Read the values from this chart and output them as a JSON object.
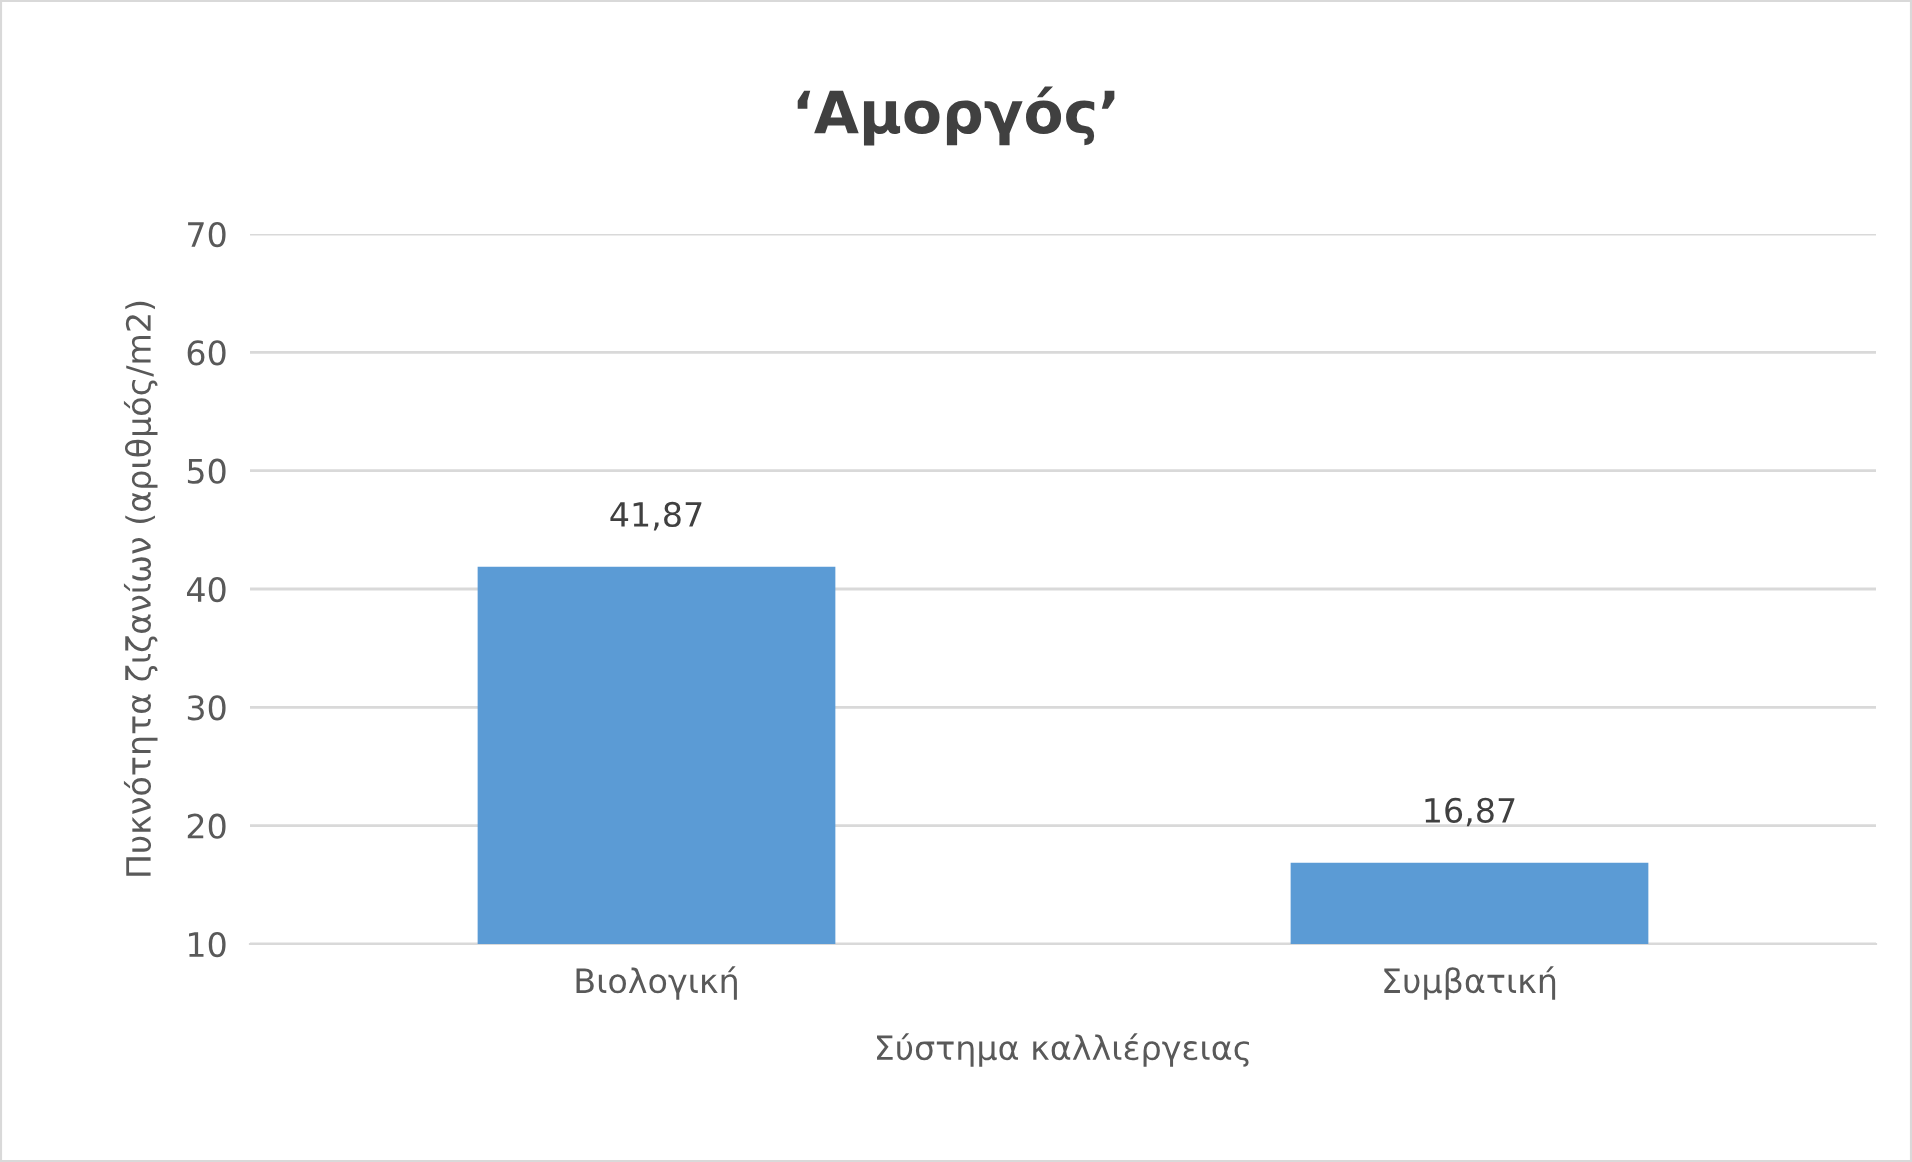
{
  "chart_data": {
    "type": "bar",
    "title": "‘Αμοργός’",
    "xlabel": "Σύστημα καλλιέργειας",
    "ylabel": "Πυκνότητα ζιζανίων (αριθμός/m2)",
    "categories": [
      "Βιολογική",
      "Συμβατική"
    ],
    "values": [
      41.87,
      16.87
    ],
    "value_labels": [
      "41,87",
      "16,87"
    ],
    "color": "#5b9bd5",
    "ylim": [
      10,
      70
    ],
    "yticks": [
      10,
      20,
      30,
      40,
      50,
      60,
      70
    ],
    "grid": "y",
    "legend": false
  }
}
